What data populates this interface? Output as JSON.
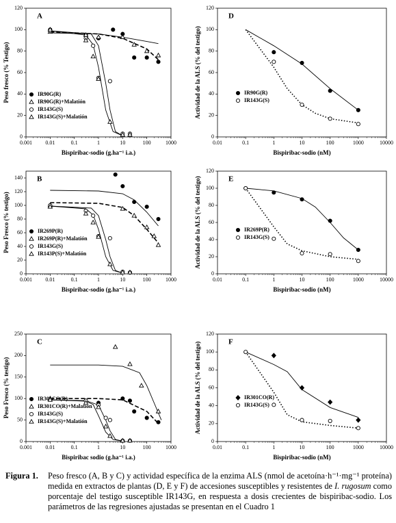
{
  "chart_data": [
    {
      "type": "scatter",
      "panel_label": "A",
      "xlabel": "Bispiribac-sodio (g.ha⁻¹ i.a.)",
      "ylabel": "Peso fresco (% Testigo)",
      "log_x": true,
      "xlim": [
        0.001,
        1000
      ],
      "xticks": [
        0.001,
        0.01,
        0.1,
        1,
        10,
        100,
        1000
      ],
      "ylim": [
        0,
        120
      ],
      "yticks": [
        0,
        20,
        40,
        60,
        80,
        100,
        120
      ],
      "legend_position": "lower left",
      "series": [
        {
          "name": "IR90G(R)",
          "marker": "filled-circle",
          "x": [
            0.01,
            0.3,
            1,
            4,
            10,
            30,
            100,
            300
          ],
          "values": [
            100,
            95,
            92,
            100,
            96,
            74,
            74,
            70
          ]
        },
        {
          "name": "IR90G(R)+Malatión",
          "marker": "open-triangle",
          "x": [
            0.01,
            0.3,
            1,
            10,
            30,
            100,
            300
          ],
          "values": [
            98,
            95,
            93,
            93,
            86,
            80,
            76
          ]
        },
        {
          "name": "IR143G(S)",
          "marker": "open-circle",
          "x": [
            0.01,
            0.3,
            0.6,
            1,
            3,
            10,
            20
          ],
          "values": [
            99,
            92,
            85,
            55,
            52,
            3,
            3
          ]
        },
        {
          "name": "IR143G(S)+Malatión",
          "marker": "open-triangle",
          "x": [
            0.01,
            0.3,
            0.6,
            1,
            3,
            10,
            20
          ],
          "values": [
            100,
            90,
            75,
            54,
            14,
            2,
            2
          ]
        }
      ],
      "curves": [
        {
          "line_style": "solid",
          "x": [
            0.01,
            1,
            10,
            100,
            300
          ],
          "values": [
            97,
            96,
            93,
            89,
            87
          ]
        },
        {
          "line_style": "dashed",
          "x": [
            0.01,
            1,
            10,
            100,
            300
          ],
          "values": [
            98,
            96,
            92,
            82,
            72
          ]
        },
        {
          "line_style": "solid",
          "x": [
            0.01,
            0.5,
            1,
            2,
            3,
            5,
            10
          ],
          "values": [
            99,
            96,
            85,
            50,
            25,
            5,
            1
          ]
        },
        {
          "line_style": "solid",
          "x": [
            0.01,
            0.3,
            0.6,
            1,
            2,
            4,
            10
          ],
          "values": [
            99,
            95,
            86,
            65,
            25,
            5,
            1
          ]
        }
      ]
    },
    {
      "type": "scatter",
      "panel_label": "D",
      "xlabel": "Bispiribac-sodio (nM)",
      "ylabel": "Actividad de la ALS (% del testigo)",
      "log_x": true,
      "xlim": [
        0.01,
        10000
      ],
      "xticks": [
        0.01,
        0.1,
        1,
        10,
        100,
        1000,
        10000
      ],
      "ylim": [
        0,
        120
      ],
      "yticks": [
        0,
        20,
        40,
        60,
        80,
        100,
        120
      ],
      "legend_position": "lower left",
      "series": [
        {
          "name": "IR90G(R)",
          "marker": "filled-circle",
          "x": [
            1,
            10,
            100,
            1000
          ],
          "values": [
            79,
            69,
            43,
            25
          ]
        },
        {
          "name": "IR143G(S)",
          "marker": "open-circle",
          "x": [
            1,
            10,
            100,
            1000
          ],
          "values": [
            70,
            30,
            17,
            12
          ]
        }
      ],
      "curves": [
        {
          "line_style": "solid",
          "x": [
            0.1,
            1,
            10,
            100,
            1000
          ],
          "values": [
            100,
            85,
            68,
            45,
            25
          ]
        },
        {
          "line_style": "dotted",
          "x": [
            0.1,
            1,
            3,
            10,
            30,
            100,
            1000
          ],
          "values": [
            100,
            65,
            45,
            30,
            22,
            17,
            13
          ]
        }
      ]
    },
    {
      "type": "scatter",
      "panel_label": "B",
      "xlabel": "Bispiribac-sodio (g.ha⁻¹ i.a.)",
      "ylabel": "Peso Fresco (% testigo)",
      "log_x": true,
      "xlim": [
        0.001,
        1000
      ],
      "xticks": [
        0.001,
        0.01,
        0.1,
        1,
        10,
        100,
        1000
      ],
      "ylim": [
        0,
        150
      ],
      "yticks": [
        0,
        20,
        40,
        60,
        80,
        100,
        120,
        140
      ],
      "legend_position": "lower left",
      "series": [
        {
          "name": "IR269P(R)",
          "marker": "filled-circle",
          "x": [
            0.01,
            5,
            10,
            30,
            100,
            300
          ],
          "values": [
            100,
            145,
            128,
            105,
            98,
            80
          ]
        },
        {
          "name": "IR269P(R)+Malatión",
          "marker": "open-triangle",
          "x": [
            0.01,
            10,
            30,
            100,
            200,
            300
          ],
          "values": [
            100,
            95,
            85,
            68,
            55,
            42
          ]
        },
        {
          "name": "IR143G(S)",
          "marker": "open-circle",
          "x": [
            0.01,
            0.3,
            0.6,
            1,
            3,
            10,
            20
          ],
          "values": [
            100,
            92,
            85,
            55,
            52,
            3,
            2
          ]
        },
        {
          "name": "IR143P(S)+Malatión",
          "marker": "open-triangle",
          "x": [
            0.01,
            0.3,
            0.6,
            1,
            3,
            10,
            20
          ],
          "values": [
            98,
            88,
            75,
            54,
            14,
            2,
            2
          ]
        }
      ],
      "curves": [
        {
          "line_style": "solid",
          "x": [
            0.01,
            1,
            10,
            30,
            100,
            300
          ],
          "values": [
            122,
            121,
            117,
            108,
            90,
            70
          ]
        },
        {
          "line_style": "dashed",
          "x": [
            0.01,
            1,
            10,
            30,
            100,
            300
          ],
          "values": [
            104,
            103,
            97,
            85,
            65,
            45
          ]
        },
        {
          "line_style": "solid",
          "x": [
            0.01,
            0.5,
            1,
            2,
            3,
            5,
            10
          ],
          "values": [
            99,
            96,
            85,
            50,
            25,
            5,
            1
          ]
        },
        {
          "line_style": "solid",
          "x": [
            0.01,
            0.3,
            0.6,
            1,
            2,
            4,
            10
          ],
          "values": [
            99,
            95,
            86,
            65,
            25,
            5,
            1
          ]
        }
      ]
    },
    {
      "type": "scatter",
      "panel_label": "E",
      "xlabel": "Bispiribac-sodio (nM)",
      "ylabel": "Actividad de la ALS (% del testigo)",
      "log_x": true,
      "xlim": [
        0.01,
        10000
      ],
      "xticks": [
        0.01,
        0.1,
        1,
        10,
        100,
        1000,
        10000
      ],
      "ylim": [
        0,
        120
      ],
      "yticks": [
        0,
        20,
        40,
        60,
        80,
        100,
        120
      ],
      "legend_position": "lower left",
      "series": [
        {
          "name": "IR269P(R)",
          "marker": "filled-circle",
          "x": [
            0.1,
            1,
            10,
            100,
            1000
          ],
          "values": [
            100,
            95,
            87,
            62,
            28
          ]
        },
        {
          "name": "IR143G(S)",
          "marker": "open-circle",
          "x": [
            0.1,
            1,
            10,
            100,
            1000
          ],
          "values": [
            100,
            41,
            24,
            23,
            15
          ]
        }
      ],
      "curves": [
        {
          "line_style": "solid",
          "x": [
            0.1,
            1,
            10,
            30,
            100,
            300,
            1000
          ],
          "values": [
            100,
            97,
            88,
            78,
            60,
            42,
            28
          ]
        },
        {
          "line_style": "dotted",
          "x": [
            0.1,
            1,
            3,
            10,
            100,
            1000
          ],
          "values": [
            100,
            55,
            35,
            27,
            20,
            17
          ]
        }
      ]
    },
    {
      "type": "scatter",
      "panel_label": "C",
      "xlabel": "Bispiribac sodio (g.ha⁻¹ i.a.)",
      "ylabel": "Peso Fresco (% testigo)",
      "log_x": true,
      "xlim": [
        0.001,
        1000
      ],
      "xticks": [
        0.001,
        0.01,
        0.1,
        1,
        10,
        100,
        1000
      ],
      "ylim": [
        0,
        250
      ],
      "yticks": [
        0,
        50,
        100,
        150,
        200,
        250
      ],
      "legend_position": "lower left",
      "series": [
        {
          "name": "IR301CO(R)",
          "marker": "filled-circle",
          "x": [
            0.01,
            1,
            10,
            20,
            30,
            100,
            300
          ],
          "values": [
            98,
            90,
            100,
            95,
            70,
            55,
            45
          ]
        },
        {
          "name": "IR301CO(R)+Malatión",
          "marker": "open-triangle",
          "x": [
            0.01,
            5,
            20,
            60,
            300
          ],
          "values": [
            100,
            220,
            180,
            130,
            70
          ]
        },
        {
          "name": "IR143G(S)",
          "marker": "open-circle",
          "x": [
            0.01,
            0.3,
            1,
            2,
            3,
            10,
            20
          ],
          "values": [
            98,
            95,
            85,
            55,
            50,
            2,
            2
          ]
        },
        {
          "name": "IR143G(S)+Malatión",
          "marker": "open-triangle",
          "x": [
            0.01,
            0.3,
            1,
            2,
            3,
            10,
            20
          ],
          "values": [
            97,
            90,
            80,
            35,
            13,
            2,
            2
          ]
        }
      ],
      "curves": [
        {
          "line_style": "solid",
          "x": [
            0.01,
            1,
            10,
            50,
            100,
            200,
            400
          ],
          "values": [
            178,
            178,
            175,
            160,
            130,
            90,
            50
          ]
        },
        {
          "line_style": "dashed",
          "x": [
            0.01,
            1,
            10,
            100,
            300
          ],
          "values": [
            100,
            100,
            97,
            70,
            42
          ]
        },
        {
          "line_style": "solid",
          "x": [
            0.01,
            0.3,
            1,
            2,
            3,
            5,
            10
          ],
          "values": [
            97,
            95,
            85,
            50,
            25,
            5,
            1
          ]
        },
        {
          "line_style": "solid",
          "x": [
            0.01,
            0.3,
            0.6,
            1,
            2,
            4,
            10
          ],
          "values": [
            97,
            94,
            86,
            60,
            22,
            5,
            1
          ]
        }
      ]
    },
    {
      "type": "scatter",
      "panel_label": "F",
      "xlabel": "Bispiribac-sodio (nM)",
      "ylabel": "Actividad de la ALS (% del testigo)",
      "log_x": true,
      "xlim": [
        0.01,
        10000
      ],
      "xticks": [
        0.01,
        0.1,
        1,
        10,
        100,
        1000,
        10000
      ],
      "ylim": [
        0,
        120
      ],
      "yticks": [
        0,
        20,
        40,
        60,
        80,
        100,
        120
      ],
      "legend_position": "lower left",
      "series": [
        {
          "name": "IR301CO(R)",
          "marker": "filled-diamond",
          "x": [
            1,
            10,
            100,
            1000
          ],
          "values": [
            96,
            60,
            44,
            24
          ]
        },
        {
          "name": "IR143G(S)",
          "marker": "open-circle",
          "x": [
            0.1,
            1,
            10,
            100,
            1000
          ],
          "values": [
            100,
            41,
            24,
            23,
            15
          ]
        }
      ],
      "curves": [
        {
          "line_style": "solid",
          "x": [
            0.1,
            1,
            3,
            10,
            100,
            1000
          ],
          "values": [
            100,
            86,
            78,
            58,
            38,
            27
          ]
        },
        {
          "line_style": "dotted",
          "x": [
            0.1,
            1,
            3,
            10,
            100,
            1000
          ],
          "values": [
            100,
            55,
            30,
            22,
            18,
            15
          ]
        }
      ]
    }
  ],
  "caption": {
    "label": "Figura 1.",
    "text_1": "Peso fresco (A, B y C) y actividad específica de la enzima ALS (nmol de acetoína·h⁻¹·mg⁻¹ proteína) medida en extractos de plantas (D, E y F) de accesiones susceptibles y resistentes de ",
    "italic": "I. rugosum",
    "text_2": " como porcentaje del testigo susceptible IR143G, en respuesta a dosis crecientes de bispiribac-sodio. Los parámetros de las regresiones ajustadas se presentan en el Cuadro 1"
  }
}
